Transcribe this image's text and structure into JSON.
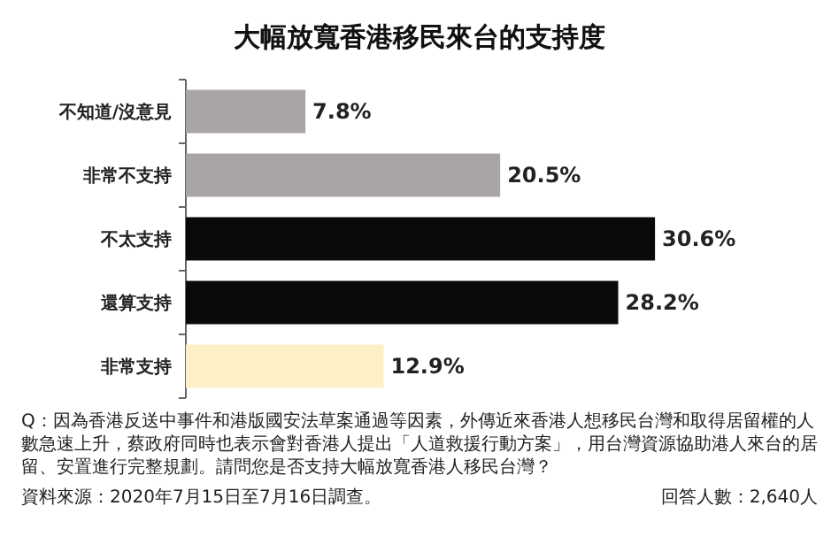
{
  "chart_data": {
    "type": "bar",
    "orientation": "horizontal",
    "title": "大幅放寬香港移民來台的支持度",
    "categories": [
      "不知道/沒意見",
      "非常不支持",
      "不太支持",
      "還算支持",
      "非常支持"
    ],
    "values": [
      7.8,
      20.5,
      30.6,
      28.2,
      12.9
    ],
    "colors": [
      "#a9a5a5",
      "#a9a5a5",
      "#0a0a0a",
      "#0a0a0a",
      "#fdf0c6"
    ],
    "value_labels": [
      "7.8%",
      "20.5%",
      "30.6%",
      "28.2%",
      "12.9%"
    ],
    "annotations": [
      "Q：因為香港反送中事件和港版國安法草案通過等因素，外傳近來香港人想移民台灣和取得居留權的人數急速上升，蔡政府同時也表示會對香港人提出「人道救援行動方案」，用台灣資源協助港人來台的居留、安置進行完整規劃。請問您是否支持大幅放寬香港人移民台灣？",
      "資料來源：2020年7月15日至7月16日調查。",
      "回答人數：2,640人"
    ]
  }
}
